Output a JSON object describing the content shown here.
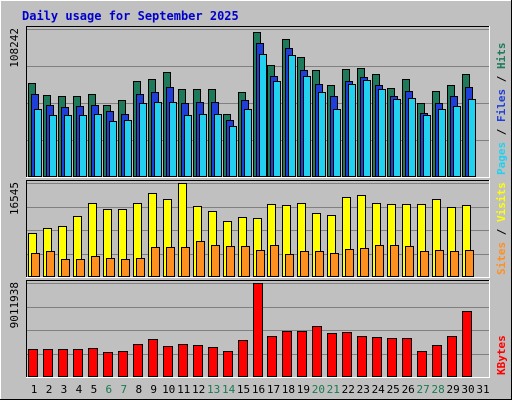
{
  "chart_data": {
    "type": "bar",
    "title": "Daily usage for September 2025",
    "days": [
      "1",
      "2",
      "3",
      "4",
      "5",
      "6",
      "7",
      "8",
      "9",
      "10",
      "11",
      "12",
      "13",
      "14",
      "15",
      "16",
      "17",
      "18",
      "19",
      "20",
      "21",
      "22",
      "23",
      "24",
      "25",
      "26",
      "27",
      "28",
      "29",
      "30",
      "31"
    ],
    "weekend_days": [
      "6",
      "7",
      "13",
      "14",
      "20",
      "21",
      "27",
      "28"
    ],
    "colors": {
      "hits": "#1e7a5a",
      "files": "#1f3fd8",
      "pages": "#22d0f0",
      "visits": "#ffff00",
      "sites": "#ff9020",
      "kbytes": "#ff0000",
      "weekday_label": "#000000",
      "weekend_label": "#1a7a50",
      "plot_bg": "#c0c0c0",
      "title": "#0000cc"
    },
    "panels": [
      {
        "id": "hits",
        "max_label": "108242",
        "max_value": 108242,
        "side_labels": [
          {
            "text": "Pages",
            "color": "#22d0f0"
          },
          {
            "text": " / ",
            "color": "#000000"
          },
          {
            "text": "Files",
            "color": "#1f3fd8"
          },
          {
            "text": " / ",
            "color": "#000000"
          },
          {
            "text": "Hits",
            "color": "#1e7a5a"
          }
        ],
        "series": [
          {
            "name": "Hits",
            "color": "#1e7a5a",
            "values": [
              69000,
              60000,
              59000,
              59000,
              61000,
              53000,
              56000,
              70000,
              72000,
              77000,
              64000,
              64000,
              64000,
              46000,
              62000,
              106000,
              82000,
              101000,
              88000,
              78000,
              67000,
              79000,
              80000,
              75000,
              65000,
              72000,
              54000,
              63000,
              67000,
              75000,
              0
            ]
          },
          {
            "name": "Files",
            "color": "#1f3fd8",
            "values": [
              61000,
              53000,
              51000,
              52000,
              53000,
              48000,
              46000,
              61000,
              62000,
              66000,
              54000,
              55000,
              55000,
              42000,
              56000,
              98000,
              74000,
              94000,
              78000,
              68000,
              59000,
              70000,
              73000,
              67000,
              59000,
              63000,
              47000,
              54000,
              59000,
              66000,
              0
            ]
          },
          {
            "name": "Pages",
            "color": "#22d0f0",
            "values": [
              50000,
              45000,
              45000,
              45000,
              46000,
              41000,
              42000,
              54000,
              55000,
              55000,
              45000,
              46000,
              46000,
              37000,
              50000,
              90000,
              70000,
              89000,
              74000,
              62000,
              50000,
              68000,
              71000,
              64000,
              57000,
              58000,
              45000,
              50000,
              52000,
              57000,
              0
            ]
          }
        ]
      },
      {
        "id": "visits",
        "max_label": "16545",
        "max_value": 16545,
        "side_labels": [
          {
            "text": "Sites",
            "color": "#ff9020"
          },
          {
            "text": " / ",
            "color": "#000000"
          },
          {
            "text": "Visits",
            "color": "#ffff00"
          }
        ],
        "series": [
          {
            "name": "Visits",
            "color": "#ffff00",
            "values": [
              7800,
              8700,
              8900,
              10800,
              13000,
              12000,
              11900,
              13100,
              14800,
              13800,
              16500,
              12500,
              11700,
              9900,
              10500,
              10400,
              12800,
              12700,
              13000,
              11300,
              11000,
              14100,
              14500,
              13100,
              12900,
              12800,
              12800,
              13800,
              12400,
              12700,
              0
            ]
          },
          {
            "name": "Sites",
            "color": "#ff9020",
            "values": [
              4200,
              4600,
              3100,
              3200,
              3700,
              3400,
              3100,
              3300,
              5200,
              5200,
              5200,
              6400,
              5600,
              5500,
              5500,
              4800,
              5700,
              4000,
              4600,
              4500,
              4300,
              4900,
              5100,
              5700,
              5600,
              5500,
              4500,
              4800,
              4600,
              4700,
              0
            ]
          }
        ]
      },
      {
        "id": "kbytes",
        "max_label": "9011938",
        "max_value": 9011938,
        "side_labels": [
          {
            "text": "KBytes",
            "color": "#ff0000"
          }
        ],
        "series": [
          {
            "name": "KBytes",
            "color": "#ff0000",
            "values": [
              2700000,
              2700000,
              2650000,
              2700000,
              2800000,
              2350000,
              2450000,
              3200000,
              3600000,
              3000000,
              3150000,
              3050000,
              2900000,
              2500000,
              3500000,
              9000000,
              3900000,
              4400000,
              4400000,
              4900000,
              4250000,
              4300000,
              3950000,
              3800000,
              3700000,
              3700000,
              2450000,
              3100000,
              3900000,
              6300000,
              0
            ]
          }
        ]
      }
    ]
  }
}
